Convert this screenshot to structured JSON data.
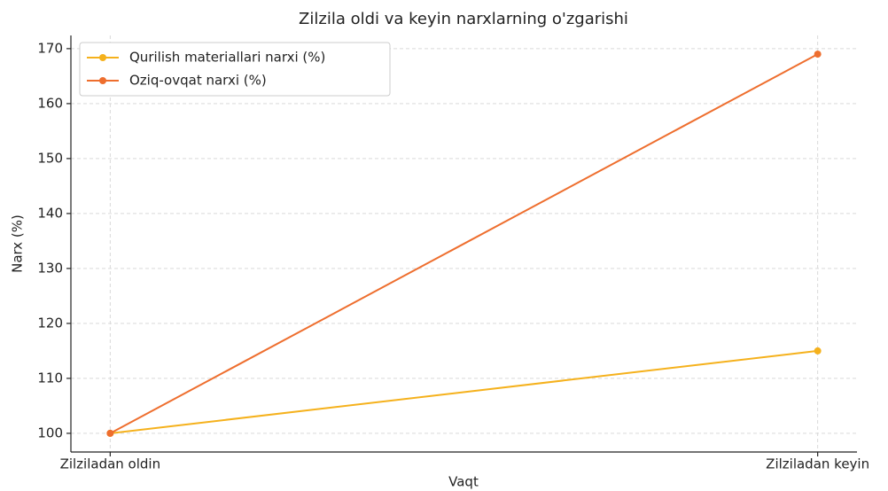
{
  "chart_data": {
    "type": "line",
    "title": "Zilzila oldi va keyin narxlarning o'zgarishi",
    "x_label": "Vaqt",
    "y_label": "Narx (%)",
    "categories": [
      "Zilziladan oldin",
      "Zilziladan keyin"
    ],
    "series": [
      {
        "name": "Qurilish materiallari narxi (%)",
        "color": "#f5b11c",
        "values": [
          100,
          115
        ]
      },
      {
        "name": "Oziq-ovqat narxi (%)",
        "color": "#ee6e2e",
        "values": [
          100,
          169
        ]
      }
    ],
    "ylim": [
      96.6,
      172.4
    ],
    "yticks": [
      100,
      110,
      120,
      130,
      140,
      150,
      160,
      170
    ],
    "grid": true,
    "legend": "upper left"
  }
}
